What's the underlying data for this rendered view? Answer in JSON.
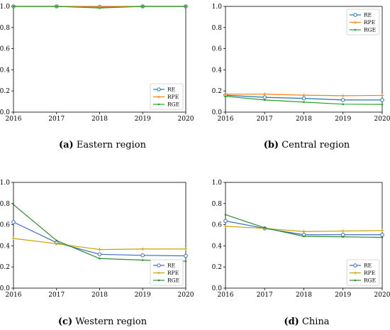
{
  "figure": {
    "panels": [
      {
        "letter": "(a)",
        "title": "Eastern region",
        "legend_position": "bottom-right"
      },
      {
        "letter": "(b)",
        "title": "Central region",
        "legend_position": "top-right"
      },
      {
        "letter": "(c)",
        "title": "Western region",
        "legend_position": "bottom-right"
      },
      {
        "letter": "(d)",
        "title": "China",
        "legend_position": "bottom-right"
      }
    ]
  },
  "chart_data": [
    {
      "type": "line",
      "x": [
        2016,
        2017,
        2018,
        2019,
        2020
      ],
      "xlim": [
        2016,
        2020
      ],
      "ylim": [
        0,
        1.0
      ],
      "yticks": [
        "0.0",
        "0.2",
        "0.4",
        "0.6",
        "0.8",
        "1.0"
      ],
      "grid": false,
      "legend": "bottom-right",
      "series": [
        {
          "name": "RE",
          "color": "#1f77b4",
          "values": [
            1.0,
            1.0,
            0.995,
            1.0,
            1.0
          ]
        },
        {
          "name": "RPE",
          "color": "#ff7f0e",
          "values": [
            1.0,
            1.0,
            1.0,
            1.0,
            1.0
          ]
        },
        {
          "name": "RGE",
          "color": "#2ca02c",
          "values": [
            1.0,
            1.0,
            0.985,
            1.0,
            1.0
          ]
        }
      ]
    },
    {
      "type": "line",
      "x": [
        2016,
        2017,
        2018,
        2019,
        2020
      ],
      "xlim": [
        2016,
        2020
      ],
      "ylim": [
        0,
        1.0
      ],
      "yticks": [
        "0.0",
        "0.2",
        "0.4",
        "0.6",
        "0.8",
        "1.0"
      ],
      "grid": false,
      "legend": "top-right",
      "series": [
        {
          "name": "RE",
          "color": "#1f77b4",
          "values": [
            0.16,
            0.14,
            0.13,
            0.115,
            0.115
          ]
        },
        {
          "name": "RPE",
          "color": "#ff7f0e",
          "values": [
            0.17,
            0.17,
            0.16,
            0.155,
            0.158
          ]
        },
        {
          "name": "RGE",
          "color": "#2ca02c",
          "values": [
            0.15,
            0.115,
            0.095,
            0.075,
            0.073
          ]
        }
      ]
    },
    {
      "type": "line",
      "x": [
        2016,
        2017,
        2018,
        2019,
        2020
      ],
      "xlim": [
        2016,
        2020
      ],
      "ylim": [
        0,
        1.0
      ],
      "yticks": [
        "0.0",
        "0.2",
        "0.4",
        "0.6",
        "0.8",
        "1.0"
      ],
      "grid": false,
      "legend": "bottom-right",
      "series": [
        {
          "name": "RE",
          "color": "#4169c8",
          "values": [
            0.625,
            0.43,
            0.32,
            0.31,
            0.305
          ]
        },
        {
          "name": "RPE",
          "color": "#c8a000",
          "values": [
            0.47,
            0.42,
            0.365,
            0.37,
            0.37
          ]
        },
        {
          "name": "RGE",
          "color": "#2e8b2e",
          "values": [
            0.79,
            0.45,
            0.28,
            0.265,
            0.255
          ]
        }
      ]
    },
    {
      "type": "line",
      "x": [
        2016,
        2017,
        2018,
        2019,
        2020
      ],
      "xlim": [
        2016,
        2020
      ],
      "ylim": [
        0,
        1.0
      ],
      "yticks": [
        "0.0",
        "0.2",
        "0.4",
        "0.6",
        "0.8",
        "1.0"
      ],
      "grid": false,
      "legend": "bottom-right",
      "series": [
        {
          "name": "RE",
          "color": "#4169c8",
          "values": [
            0.635,
            0.565,
            0.505,
            0.505,
            0.505
          ]
        },
        {
          "name": "RPE",
          "color": "#c8a000",
          "values": [
            0.585,
            0.565,
            0.535,
            0.54,
            0.545
          ]
        },
        {
          "name": "RGE",
          "color": "#2e8b2e",
          "values": [
            0.695,
            0.57,
            0.49,
            0.485,
            0.48
          ]
        }
      ]
    }
  ]
}
